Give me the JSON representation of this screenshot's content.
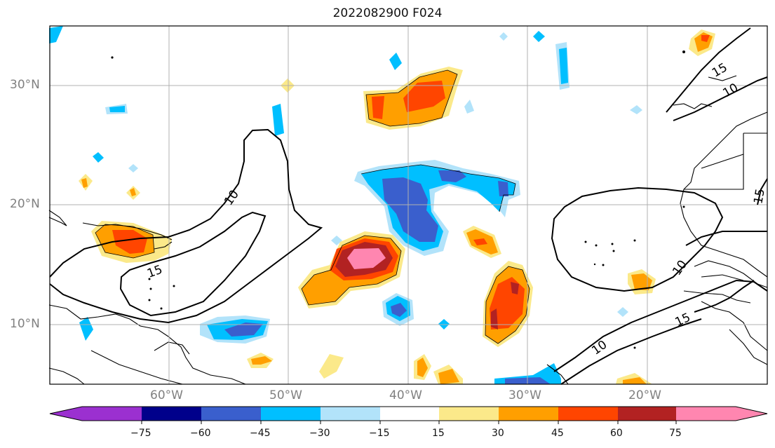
{
  "map": {
    "title": "2022082900 F024",
    "lat_labels": [
      "30°N",
      "20°N",
      "10°N"
    ],
    "lon_labels": [
      "60°W",
      "50°W",
      "40°W",
      "30°W",
      "20°W"
    ],
    "contour_labels": [
      "10",
      "15",
      "15",
      "10",
      "15",
      "10",
      "10",
      "15"
    ],
    "extent": {
      "lon": [
        -70,
        -10
      ],
      "lat": [
        5,
        35
      ]
    }
  },
  "colorbar": {
    "ticks": [
      "−75",
      "−60",
      "−45",
      "−30",
      "−15",
      "15",
      "30",
      "45",
      "60",
      "75"
    ],
    "colors": [
      "#9b30d0",
      "#00008b",
      "#3a5fcd",
      "#00bfff",
      "#b2e3fa",
      "#ffffff",
      "#fbe98a",
      "#ff9f00",
      "#ff4500",
      "#b22222",
      "#ff86b0"
    ]
  }
}
